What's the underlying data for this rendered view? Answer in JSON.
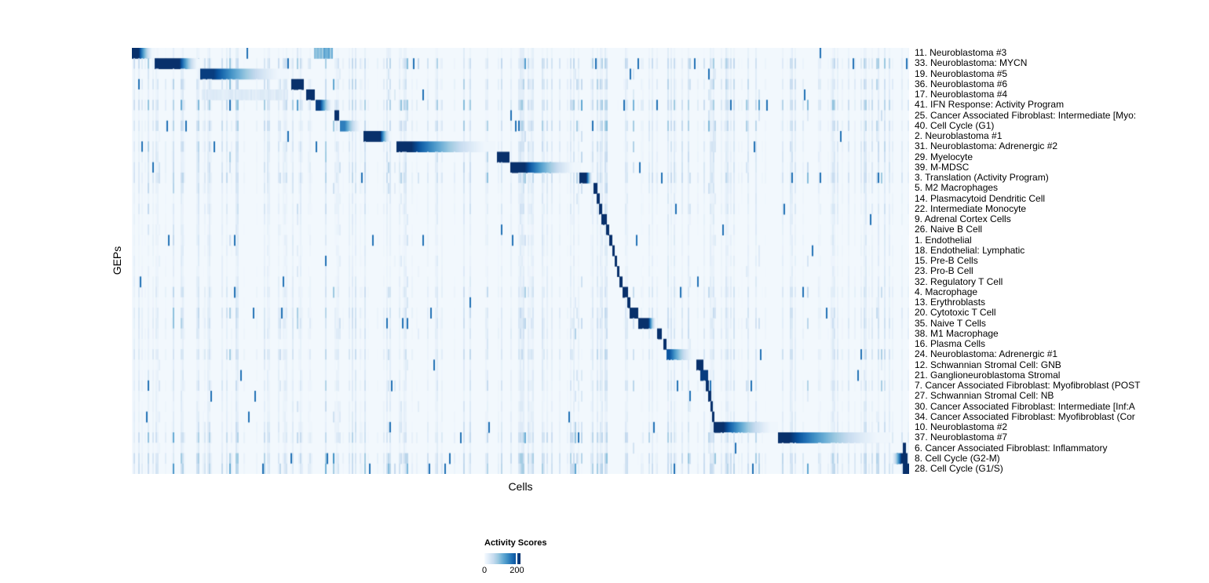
{
  "figure": {
    "background": "#ffffff"
  },
  "legend": {
    "title": "Activity Scores",
    "ticks": [
      "0",
      "200"
    ]
  },
  "chart_data": {
    "type": "heatmap",
    "title": "",
    "xlabel": "Cells",
    "ylabel": "GEPs",
    "n_rows": 41,
    "colorbar": {
      "title": "Activity Scores",
      "tick_values": [
        0,
        200
      ],
      "value_range": [
        0,
        222
      ],
      "tick_200_fraction": 0.9
    },
    "colormap": [
      "#f7fbff",
      "#deebf7",
      "#c6dbef",
      "#9ecae1",
      "#6baed6",
      "#4292c6",
      "#2171b5",
      "#08519c",
      "#08306b"
    ],
    "background_value": 0.025,
    "noise_seed": 42,
    "rows": [
      {
        "label": "11. Neuroblastoma #3",
        "block": [
          0.0,
          0.029
        ],
        "style": "gradient",
        "plateau": 0.3,
        "intensity": 1.0,
        "noise": 0.25,
        "extras": [
          [
            0.234,
            0.258,
            0.45
          ]
        ]
      },
      {
        "label": "33. Neuroblastoma: MYCN",
        "block": [
          0.029,
          0.088
        ],
        "style": "gradient",
        "plateau": 0.55,
        "intensity": 1.0,
        "noise": 0.8,
        "extras": []
      },
      {
        "label": "19. Neuroblastoma #5",
        "block": [
          0.088,
          0.202
        ],
        "style": "gradient",
        "plateau": 0.15,
        "intensity": 0.95,
        "noise": 0.3,
        "extras": []
      },
      {
        "label": "36. Neuroblastoma #6",
        "block": [
          0.205,
          0.221
        ],
        "style": "solid",
        "plateau": 0.5,
        "intensity": 1.0,
        "noise": 0.7,
        "extras": []
      },
      {
        "label": "17. Neuroblastoma #4",
        "block": [
          0.224,
          0.235
        ],
        "style": "solid",
        "plateau": 0.5,
        "intensity": 1.0,
        "noise": 0.35,
        "extras": [
          [
            0.09,
            0.2,
            0.12
          ]
        ]
      },
      {
        "label": "41. IFN Response: Activity Program",
        "block": [
          0.236,
          0.26
        ],
        "style": "gradient",
        "plateau": 0.25,
        "intensity": 0.95,
        "noise": 0.95,
        "extras": []
      },
      {
        "label": "25. Cancer Associated Fibroblast: Intermediate [Myo:",
        "block": [
          0.261,
          0.267
        ],
        "style": "solid",
        "plateau": 0.5,
        "intensity": 1.0,
        "noise": 0.3,
        "extras": []
      },
      {
        "label": "40. Cell Cycle (G1)",
        "block": [
          0.268,
          0.297
        ],
        "style": "gradient",
        "plateau": 0.2,
        "intensity": 0.7,
        "noise": 0.75,
        "extras": []
      },
      {
        "label": "2. Neuroblastoma #1",
        "block": [
          0.298,
          0.334
        ],
        "style": "gradient",
        "plateau": 0.6,
        "intensity": 1.0,
        "noise": 0.35,
        "extras": []
      },
      {
        "label": "31. Neuroblastoma: Adrenergic #2",
        "block": [
          0.34,
          0.468
        ],
        "style": "gradient",
        "plateau": 0.15,
        "intensity": 1.0,
        "noise": 0.6,
        "extras": []
      },
      {
        "label": "29. Myelocyte",
        "block": [
          0.47,
          0.486
        ],
        "style": "solid",
        "plateau": 0.5,
        "intensity": 1.0,
        "noise": 0.5,
        "extras": []
      },
      {
        "label": "39. M-MDSC",
        "block": [
          0.487,
          0.578
        ],
        "style": "gradient",
        "plateau": 0.2,
        "intensity": 1.0,
        "noise": 0.55,
        "extras": []
      },
      {
        "label": "3. Translation (Activity Program)",
        "block": [
          0.576,
          0.594
        ],
        "style": "gradient",
        "plateau": 0.5,
        "intensity": 1.0,
        "noise": 0.7,
        "extras": []
      },
      {
        "label": "5. M2 Macrophages",
        "block": [
          0.594,
          0.599
        ],
        "style": "solid",
        "plateau": 0.5,
        "intensity": 1.0,
        "noise": 0.45,
        "extras": []
      },
      {
        "label": "14. Plasmacytoid Dendritic Cell",
        "block": [
          0.598,
          0.602
        ],
        "style": "solid",
        "plateau": 0.5,
        "intensity": 1.0,
        "noise": 0.35,
        "extras": []
      },
      {
        "label": "22. Intermediate Monocyte",
        "block": [
          0.601,
          0.605
        ],
        "style": "solid",
        "plateau": 0.5,
        "intensity": 1.0,
        "noise": 0.45,
        "extras": []
      },
      {
        "label": "9. Adrenal Cortex Cells",
        "block": [
          0.604,
          0.611
        ],
        "style": "solid",
        "plateau": 0.5,
        "intensity": 1.0,
        "noise": 0.3,
        "extras": []
      },
      {
        "label": "26. Naive B Cell",
        "block": [
          0.61,
          0.614
        ],
        "style": "solid",
        "plateau": 0.5,
        "intensity": 1.0,
        "noise": 0.3,
        "extras": []
      },
      {
        "label": "1. Endothelial",
        "block": [
          0.614,
          0.618
        ],
        "style": "solid",
        "plateau": 0.5,
        "intensity": 1.0,
        "noise": 0.35,
        "extras": []
      },
      {
        "label": "18. Endothelial: Lymphatic",
        "block": [
          0.618,
          0.621
        ],
        "style": "solid",
        "plateau": 0.5,
        "intensity": 1.0,
        "noise": 0.3,
        "extras": []
      },
      {
        "label": "15. Pre-B Cells",
        "block": [
          0.621,
          0.624
        ],
        "style": "solid",
        "plateau": 0.5,
        "intensity": 1.0,
        "noise": 0.3,
        "extras": []
      },
      {
        "label": "23. Pro-B Cell",
        "block": [
          0.624,
          0.627
        ],
        "style": "solid",
        "plateau": 0.5,
        "intensity": 1.0,
        "noise": 0.3,
        "extras": []
      },
      {
        "label": "32. Regulatory T Cell",
        "block": [
          0.627,
          0.631
        ],
        "style": "solid",
        "plateau": 0.5,
        "intensity": 1.0,
        "noise": 0.35,
        "extras": []
      },
      {
        "label": "4. Macrophage",
        "block": [
          0.631,
          0.638
        ],
        "style": "solid",
        "plateau": 0.5,
        "intensity": 1.0,
        "noise": 0.5,
        "extras": []
      },
      {
        "label": "13. Erythroblasts",
        "block": [
          0.637,
          0.641
        ],
        "style": "solid",
        "plateau": 0.5,
        "intensity": 1.0,
        "noise": 0.3,
        "extras": []
      },
      {
        "label": "20. Cytotoxic T Cell",
        "block": [
          0.64,
          0.652
        ],
        "style": "solid",
        "plateau": 0.5,
        "intensity": 1.0,
        "noise": 0.55,
        "extras": []
      },
      {
        "label": "35. Naive T Cells",
        "block": [
          0.652,
          0.676
        ],
        "style": "gradient",
        "plateau": 0.55,
        "intensity": 1.0,
        "noise": 0.55,
        "extras": []
      },
      {
        "label": "38. M1 Macrophage",
        "block": [
          0.676,
          0.682
        ],
        "style": "solid",
        "plateau": 0.5,
        "intensity": 1.0,
        "noise": 0.5,
        "extras": []
      },
      {
        "label": "16. Plasma Cells",
        "block": [
          0.684,
          0.688
        ],
        "style": "solid",
        "plateau": 0.5,
        "intensity": 1.0,
        "noise": 0.3,
        "extras": []
      },
      {
        "label": "24. Neuroblastoma: Adrenergic #1",
        "block": [
          0.688,
          0.726
        ],
        "style": "gradient",
        "plateau": 0.1,
        "intensity": 0.85,
        "noise": 0.6,
        "extras": []
      },
      {
        "label": "12. Schwannian Stromal Cell: GNB",
        "block": [
          0.726,
          0.735
        ],
        "style": "solid",
        "plateau": 0.5,
        "intensity": 1.0,
        "noise": 0.3,
        "extras": []
      },
      {
        "label": "21. Ganglioneuroblastoma Stromal",
        "block": [
          0.731,
          0.741
        ],
        "style": "solid",
        "plateau": 0.5,
        "intensity": 0.95,
        "noise": 0.35,
        "extras": []
      },
      {
        "label": "7. Cancer Associated Fibroblast: Myofibroblast (POST",
        "block": [
          0.738,
          0.742
        ],
        "style": "solid",
        "plateau": 0.5,
        "intensity": 1.0,
        "noise": 0.5,
        "extras": []
      },
      {
        "label": "27. Schwannian Stromal Cell: NB",
        "block": [
          0.741,
          0.745
        ],
        "style": "solid",
        "plateau": 0.5,
        "intensity": 1.0,
        "noise": 0.3,
        "extras": []
      },
      {
        "label": "30. Cancer Associated Fibroblast: Intermediate [Inf:A",
        "block": [
          0.744,
          0.747
        ],
        "style": "solid",
        "plateau": 0.5,
        "intensity": 1.0,
        "noise": 0.35,
        "extras": []
      },
      {
        "label": "34. Cancer Associated Fibroblast: Myofibroblast (Cor",
        "block": [
          0.746,
          0.749
        ],
        "style": "solid",
        "plateau": 0.5,
        "intensity": 1.0,
        "noise": 0.35,
        "extras": []
      },
      {
        "label": "10. Neuroblastoma #2",
        "block": [
          0.748,
          0.831
        ],
        "style": "gradient",
        "plateau": 0.15,
        "intensity": 1.0,
        "noise": 0.5,
        "extras": []
      },
      {
        "label": "37. Neuroblastoma #7",
        "block": [
          0.831,
          0.976
        ],
        "style": "gradient",
        "plateau": 0.1,
        "intensity": 1.0,
        "noise": 0.75,
        "extras": []
      },
      {
        "label": "6. Cancer Associated Fibroblast: Inflammatory",
        "block": [
          0.992,
          0.996
        ],
        "style": "solid",
        "plateau": 0.5,
        "intensity": 1.0,
        "noise": 0.3,
        "extras": []
      },
      {
        "label": "8. Cell Cycle (G2-M)",
        "block": [
          0.976,
          0.998
        ],
        "style": "gradient_rev",
        "plateau": 0.35,
        "intensity": 1.0,
        "noise": 0.85,
        "extras": []
      },
      {
        "label": "28. Cell Cycle (G1/S)",
        "block": [
          0.992,
          1.0
        ],
        "style": "solid",
        "plateau": 0.5,
        "intensity": 1.0,
        "noise": 0.8,
        "extras": []
      }
    ]
  }
}
